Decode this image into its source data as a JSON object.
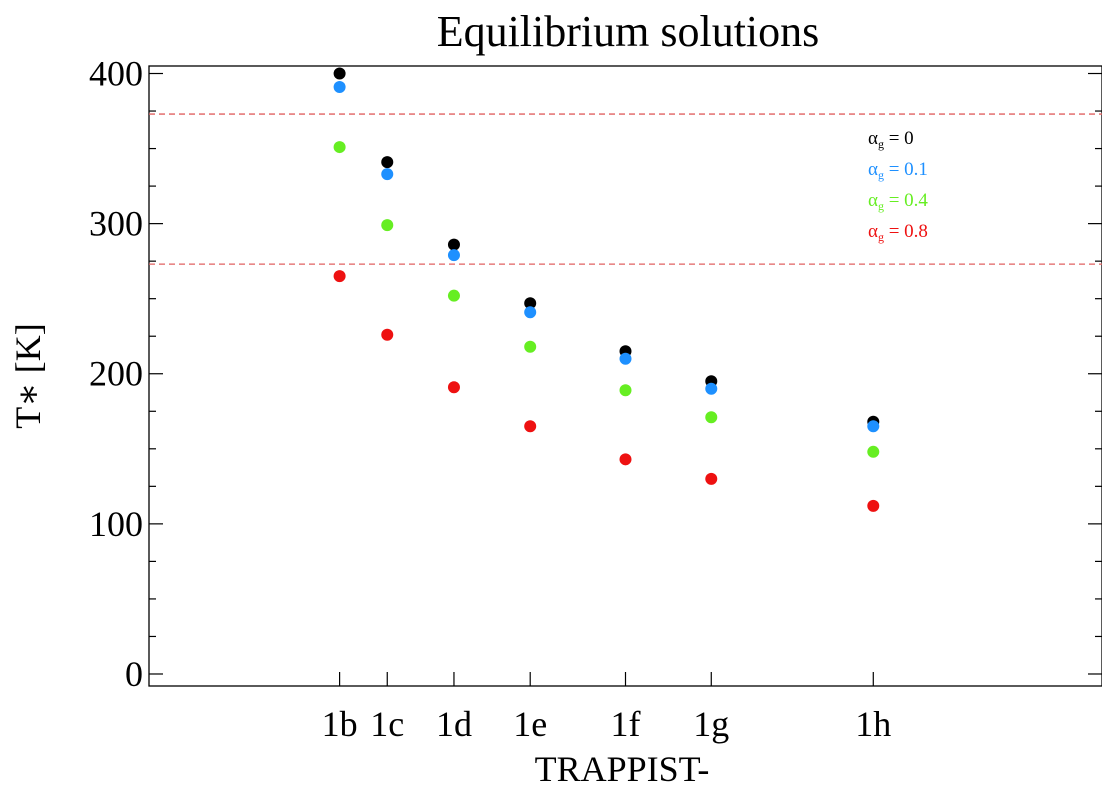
{
  "chart_data": {
    "type": "scatter",
    "title": "Equilibrium solutions",
    "xlabel": "TRAPPIST-",
    "ylabel": "T∗ [K]",
    "x": [
      2.5,
      3.0,
      3.7,
      4.5,
      5.5,
      6.4,
      8.1
    ],
    "xticks": [
      "1b",
      "1c",
      "1d",
      "1e",
      "1f",
      "1g",
      "1h"
    ],
    "xlim": [
      0.5,
      10.5
    ],
    "ylim": [
      -8,
      405
    ],
    "yticks": [
      0,
      100,
      200,
      300,
      400
    ],
    "reference_lines": [
      {
        "type": "hline",
        "y": 273,
        "style": "dashed",
        "color": "#e06060"
      },
      {
        "type": "hline",
        "y": 373,
        "style": "dashed",
        "color": "#e06060"
      }
    ],
    "legend_position": "top-right",
    "series": [
      {
        "name": "αg = 0",
        "legend_symbol": "α",
        "legend_sub": "g",
        "legend_rest": " = 0",
        "color": "#000000",
        "values": [
          400,
          341,
          286,
          247,
          215,
          195,
          168
        ]
      },
      {
        "name": "αg = 0.1",
        "legend_symbol": "α",
        "legend_sub": "g",
        "legend_rest": " = 0.1",
        "color": "#1e90ff",
        "values": [
          391,
          333,
          279,
          241,
          210,
          190,
          165
        ]
      },
      {
        "name": "αg = 0.4",
        "legend_symbol": "α",
        "legend_sub": "g",
        "legend_rest": " = 0.4",
        "color": "#66ee22",
        "values": [
          351,
          299,
          252,
          218,
          189,
          171,
          148
        ]
      },
      {
        "name": "αg = 0.8",
        "legend_symbol": "α",
        "legend_sub": "g",
        "legend_rest": " = 0.8",
        "color": "#ee1111",
        "values": [
          265,
          226,
          191,
          165,
          143,
          130,
          112
        ]
      }
    ]
  }
}
